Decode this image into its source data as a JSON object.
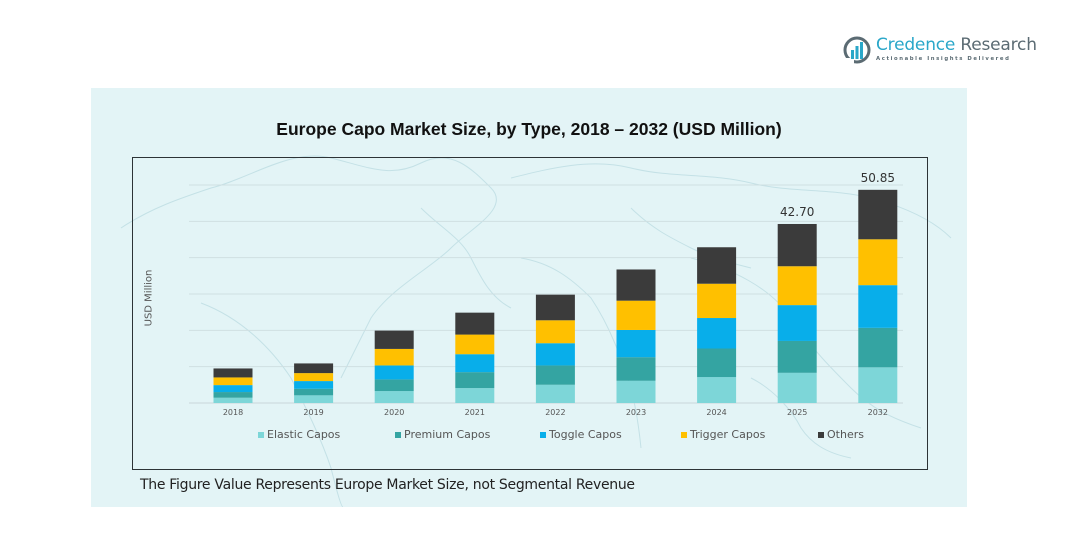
{
  "brand": {
    "name_part1": "Credence",
    "name_part2": " Research",
    "tagline": "Actionable Insights Delivered",
    "logo_icon": "bar-chart-in-circle-icon",
    "colors": {
      "primary": "#2aa7c9",
      "secondary": "#5b6b73"
    }
  },
  "footnote": "The Figure Value Represents Europe Market Size, not Segmental Revenue",
  "colors": {
    "panel_background": "#e3f4f6",
    "elastic": "#7dd6d8",
    "premium": "#34a4a2",
    "toggle": "#08aeea",
    "trigger": "#ffc000",
    "others": "#3b3b3b"
  },
  "chart_data": {
    "type": "bar",
    "stacked": true,
    "title": "Europe Capo Market Size, by Type, 2018 – 2032 (USD Million)",
    "xlabel": "",
    "ylabel": "USD Million",
    "ylim": [
      0,
      52
    ],
    "grid": true,
    "y_tick_labels_shown": false,
    "legend_position": "bottom",
    "categories": [
      "2018",
      "2019",
      "2020",
      "2021",
      "2022",
      "2023",
      "2024",
      "2025",
      "2032"
    ],
    "series": [
      {
        "name": "Elastic Capos",
        "color": "#7dd6d8",
        "values": [
          1.26,
          1.83,
          2.85,
          3.56,
          4.35,
          5.3,
          6.18,
          7.2,
          8.51
        ]
      },
      {
        "name": "Premium Capos",
        "color": "#34a4a2",
        "values": [
          1.35,
          1.57,
          2.78,
          3.8,
          4.61,
          5.63,
          6.82,
          7.6,
          9.42
        ]
      },
      {
        "name": "Toggle Capos",
        "color": "#08aeea",
        "values": [
          1.66,
          1.83,
          3.33,
          4.28,
          5.3,
          6.49,
          7.27,
          8.55,
          10.18
        ]
      },
      {
        "name": "Trigger Capos",
        "color": "#ffc000",
        "values": [
          1.83,
          1.9,
          3.94,
          4.68,
          5.47,
          6.99,
          8.18,
          9.27,
          10.94
        ]
      },
      {
        "name": "Others",
        "color": "#3b3b3b",
        "values": [
          2.14,
          2.31,
          4.37,
          5.23,
          6.11,
          7.44,
          8.7,
          10.08,
          11.8
        ]
      }
    ],
    "totals": [
      8.24,
      9.44,
      17.27,
      21.55,
      25.84,
      31.85,
      37.15,
      42.7,
      50.85
    ],
    "data_labels": [
      {
        "category": "2025",
        "text": "42.70"
      },
      {
        "category": "2032",
        "text": "50.85"
      }
    ]
  }
}
